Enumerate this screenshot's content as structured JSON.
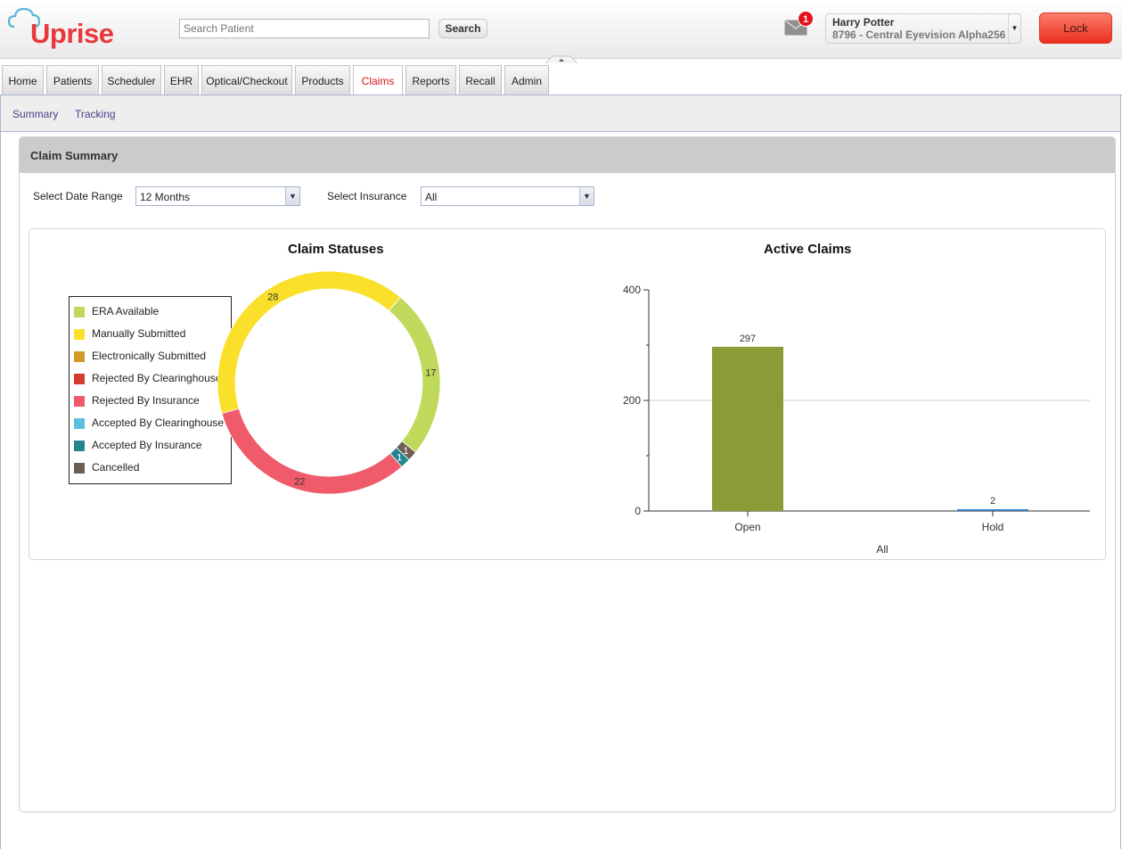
{
  "header": {
    "logo_text": "Uprise",
    "search_placeholder": "Search Patient",
    "search_button": "Search",
    "notification_count": "1",
    "user_name": "Harry Potter",
    "user_location": "8796 - Central Eyevision Alpha256",
    "lock_button": "Lock"
  },
  "tabs": [
    "Home",
    "Patients",
    "Scheduler",
    "EHR",
    "Optical/Checkout",
    "Products",
    "Claims",
    "Reports",
    "Recall",
    "Admin"
  ],
  "active_tab": "Claims",
  "subnav": [
    "Summary",
    "Tracking"
  ],
  "panel": {
    "title": "Claim Summary",
    "date_range_label": "Select Date Range",
    "date_range_value": "12 Months",
    "insurance_label": "Select Insurance",
    "insurance_value": "All"
  },
  "colors": {
    "accent_red": "#e8383b",
    "active_tab_text": "#d8151b"
  },
  "chart_data": [
    {
      "type": "pie",
      "title": "Claim Statuses",
      "legend_position": "left",
      "categories": [
        "ERA Available",
        "Manually Submitted",
        "Electronically Submitted",
        "Rejected By Clearinghouse",
        "Rejected By Insurance",
        "Accepted By Clearinghouse",
        "Accepted By Insurance",
        "Cancelled"
      ],
      "values": [
        17,
        28,
        0,
        0,
        22,
        0,
        1,
        1
      ],
      "colors": [
        "#bfd95a",
        "#fae02a",
        "#d39b25",
        "#d33c2e",
        "#ef5b6b",
        "#5bc0de",
        "#23868f",
        "#6e5f52"
      ]
    },
    {
      "type": "bar",
      "title": "Active Claims",
      "categories": [
        "Open",
        "Hold"
      ],
      "values": [
        297,
        2
      ],
      "colors": [
        "#8a9c35",
        "#3a7ec6"
      ],
      "xlabel": "All",
      "ylabel": "",
      "ylim": [
        0,
        400
      ],
      "yticks": [
        0,
        200,
        400
      ],
      "grid": true
    }
  ]
}
